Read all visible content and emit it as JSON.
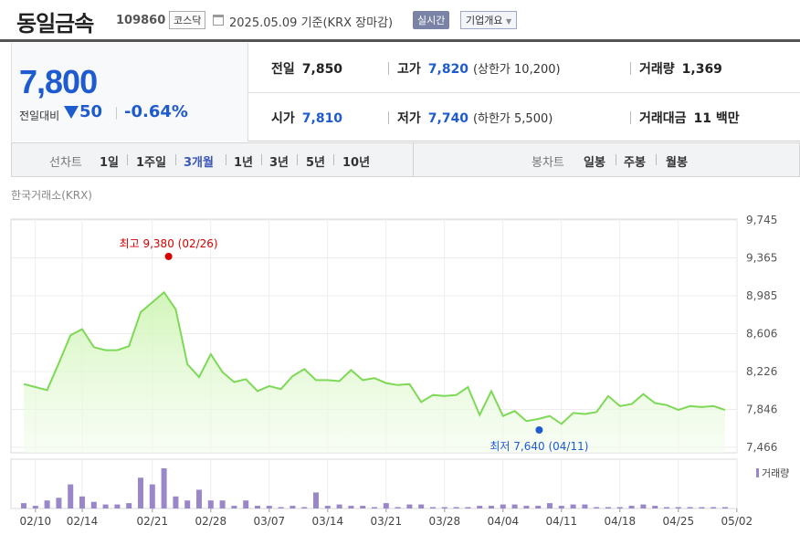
{
  "header": {
    "name": "동일금속",
    "code": "109860",
    "market": "코스닥",
    "date": "2025.05.09 기준(KRX 장마감)",
    "realtime_label": "실시간",
    "company_info_label": "기업개요"
  },
  "quote": {
    "price": "7,800",
    "change_label": "전일대비",
    "change": "50",
    "change_pct": "-0.64%",
    "prev_close_label": "전일",
    "prev_close": "7,850",
    "high_label": "고가",
    "high": "7,820",
    "upper_limit": "(상한가 10,200)",
    "volume_label": "거래량",
    "volume": "1,369",
    "open_label": "시가",
    "open": "7,810",
    "low_label": "저가",
    "low": "7,740",
    "lower_limit": "(하한가 5,500)",
    "amount_label": "거래대금",
    "amount": "11 백만"
  },
  "period_bar": {
    "line_label": "선차트",
    "line_items": [
      "1일",
      "1주일",
      "3개월",
      "1년",
      "3년",
      "5년",
      "10년"
    ],
    "active": "3개월",
    "candle_label": "봉차트",
    "candle_items": [
      "일봉",
      "주봉",
      "월봉"
    ]
  },
  "colors": {
    "up": "#d60000",
    "down": "#1e5bcf",
    "line": "#7ed957",
    "volume": "#9a87c9"
  },
  "chart_data": {
    "type": "area",
    "source": "한국거래소(KRX)",
    "y_ticks": [
      "9,745",
      "9,365",
      "8,985",
      "8,606",
      "8,226",
      "7,846",
      "7,466"
    ],
    "y_tick_values": [
      9745,
      9365,
      8985,
      8606,
      8226,
      7846,
      7466
    ],
    "ylim": [
      7466,
      9745
    ],
    "x_ticks": [
      "02/10",
      "02/14",
      "02/21",
      "02/28",
      "03/07",
      "03/14",
      "03/21",
      "03/28",
      "04/04",
      "04/11",
      "04/18",
      "04/25",
      "05/02"
    ],
    "x_tick_index": [
      1,
      5,
      11,
      16,
      21,
      26,
      31,
      36,
      41,
      46,
      51,
      56,
      61
    ],
    "values": [
      8100,
      8070,
      8040,
      8310,
      8590,
      8650,
      8470,
      8440,
      8440,
      8480,
      8820,
      8920,
      9020,
      8850,
      8300,
      8170,
      8400,
      8220,
      8120,
      8150,
      8030,
      8080,
      8050,
      8180,
      8250,
      8140,
      8140,
      8130,
      8240,
      8140,
      8160,
      8110,
      8090,
      8100,
      7920,
      7990,
      7980,
      7990,
      8070,
      7790,
      8030,
      7780,
      7830,
      7730,
      7750,
      7780,
      7700,
      7810,
      7800,
      7820,
      7980,
      7880,
      7900,
      8000,
      7910,
      7890,
      7840,
      7880,
      7870,
      7880,
      7840
    ],
    "volume_label": "거래량",
    "volume": [
      4,
      2,
      6,
      8,
      18,
      9,
      5,
      3,
      3,
      4,
      23,
      18,
      30,
      9,
      6,
      14,
      6,
      6,
      2,
      6,
      2,
      2,
      1,
      2,
      1,
      12,
      2,
      3,
      2,
      2,
      1,
      4,
      1,
      3,
      3,
      1,
      1,
      1,
      1,
      2,
      2,
      3,
      3,
      2,
      2,
      4,
      2,
      3,
      3,
      1,
      1,
      1,
      2,
      3,
      2,
      1,
      1,
      1,
      1,
      1,
      1
    ],
    "high_label": "최고 9,380 (02/26)",
    "high_index": 12,
    "high_value": 9380,
    "low_label": "최저 7,640 (04/11)",
    "low_index": 43,
    "low_value": 7640
  }
}
